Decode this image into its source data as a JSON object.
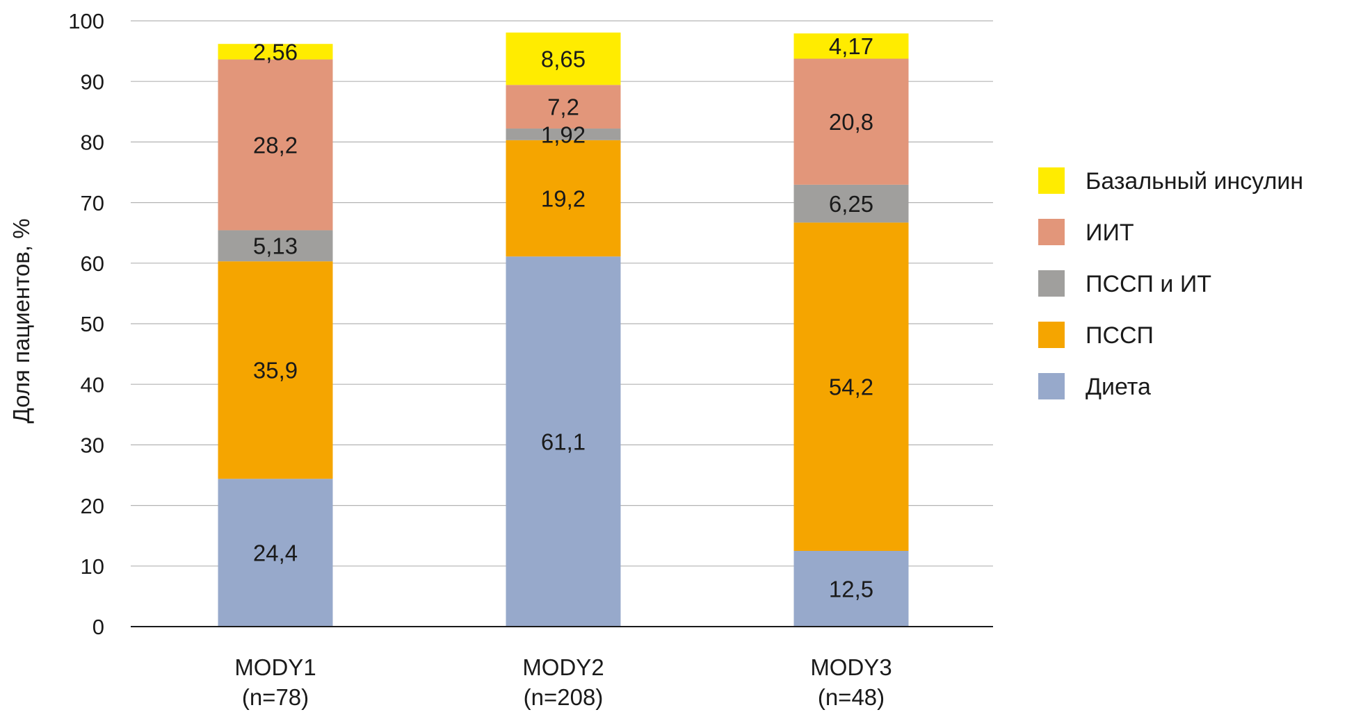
{
  "chart_data": {
    "type": "bar",
    "stacked": true,
    "title": "",
    "xlabel": "",
    "ylabel": "Доля пациентов, %",
    "ylim": [
      0,
      100
    ],
    "yticks": [
      0,
      10,
      20,
      30,
      40,
      50,
      60,
      70,
      80,
      90,
      100
    ],
    "ytick_labels": [
      "0",
      "10",
      "20",
      "30",
      "40",
      "50",
      "60",
      "70",
      "80",
      "90",
      "100"
    ],
    "grid": true,
    "legend_position": "right",
    "categories": [
      {
        "name": "MODY1",
        "n": "(n=78)"
      },
      {
        "name": "MODY2",
        "n": "(n=208)"
      },
      {
        "name": "MODY3",
        "n": "(n=48)"
      }
    ],
    "series": [
      {
        "name": "Диета",
        "color": "#97A9CB",
        "values": [
          24.4,
          61.1,
          12.5
        ],
        "labels": [
          "24,4",
          "61,1",
          "12,5"
        ]
      },
      {
        "name": "ПССП",
        "color": "#F5A500",
        "values": [
          35.9,
          19.2,
          54.2
        ],
        "labels": [
          "35,9",
          "19,2",
          "54,2"
        ]
      },
      {
        "name": "ПССП и ИТ",
        "color": "#A09F9D",
        "values": [
          5.13,
          1.92,
          6.25
        ],
        "labels": [
          "5,13",
          "1,92",
          "6,25"
        ]
      },
      {
        "name": "ИИТ",
        "color": "#E2967A",
        "values": [
          28.2,
          7.2,
          20.8
        ],
        "labels": [
          "28,2",
          "7,2",
          "20,8"
        ]
      },
      {
        "name": "Базальный инсулин",
        "color": "#FFEC00",
        "values": [
          2.56,
          8.65,
          4.17
        ],
        "labels": [
          "2,56",
          "8,65",
          "4,17"
        ]
      }
    ],
    "legend_order": [
      "Базальный инсулин",
      "ИИТ",
      "ПССП и ИТ",
      "ПССП",
      "Диета"
    ]
  }
}
